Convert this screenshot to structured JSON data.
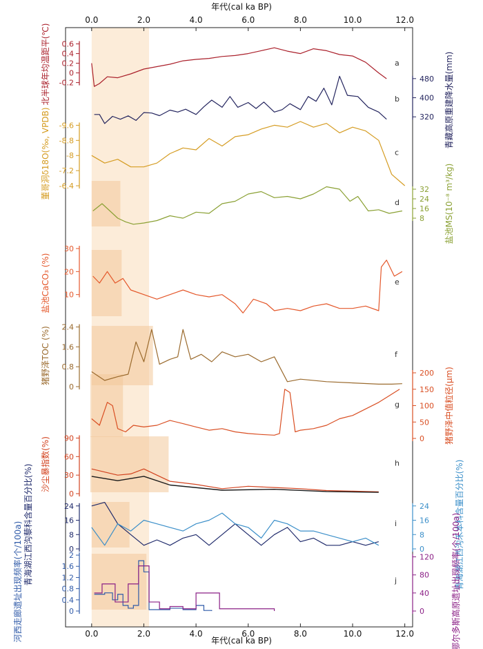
{
  "chart_data": {
    "type": "line",
    "title": "",
    "x_axis": {
      "label": "年代(cal ka BP)",
      "ticks": [
        "0.0",
        "2.0",
        "4.0",
        "6.0",
        "8.0",
        "10.0",
        "12.0"
      ],
      "tick_values": [
        0,
        2,
        4,
        6,
        8,
        10,
        12
      ],
      "range": [
        -1,
        12.3
      ]
    },
    "shading": {
      "main_band": [
        0,
        2.2
      ],
      "boxes": {
        "d": [
          0,
          1.1
        ],
        "e": [
          0,
          1.15
        ],
        "f": [
          0,
          2.35
        ],
        "g": [
          -0.05,
          1.2
        ],
        "h": [
          -0.05,
          2.95
        ],
        "i": [
          0,
          1.45
        ],
        "j": [
          0,
          2.1
        ]
      }
    },
    "panels": [
      {
        "letter": "a",
        "name": "北半球年均温距平(℃)",
        "side": "left",
        "color": "#aa1f2a",
        "ticks": [
          "0.6",
          "0.4",
          "0.2",
          "0",
          "-0.2"
        ],
        "tick_values": [
          0.6,
          0.4,
          0.2,
          0,
          -0.2
        ],
        "ylim": [
          -0.32,
          0.68
        ],
        "x": [
          0,
          0.1,
          0.3,
          0.6,
          1.0,
          1.5,
          2.0,
          2.5,
          3.0,
          3.5,
          4.0,
          4.5,
          5.0,
          5.5,
          6.0,
          6.5,
          7.0,
          7.5,
          8.0,
          8.5,
          9.0,
          9.5,
          10.0,
          10.5,
          11.0,
          11.3
        ],
        "y": [
          0.2,
          -0.28,
          -0.22,
          -0.08,
          -0.1,
          -0.02,
          0.08,
          0.13,
          0.18,
          0.25,
          0.28,
          0.3,
          0.34,
          0.36,
          0.4,
          0.46,
          0.52,
          0.45,
          0.4,
          0.5,
          0.46,
          0.38,
          0.35,
          0.22,
          0.0,
          -0.12
        ]
      },
      {
        "letter": "b",
        "name": "青藏高原重建降水量(mm)",
        "side": "right",
        "color": "#23245e",
        "ticks": [
          "480",
          "400",
          "320"
        ],
        "tick_values": [
          480,
          400,
          320
        ],
        "ylim": [
          260,
          520
        ],
        "x": [
          0.1,
          0.3,
          0.5,
          0.8,
          1.1,
          1.4,
          1.7,
          2.0,
          2.3,
          2.6,
          3.0,
          3.3,
          3.6,
          4.0,
          4.3,
          4.6,
          5.0,
          5.3,
          5.6,
          6.0,
          6.3,
          6.6,
          7.0,
          7.3,
          7.6,
          8.0,
          8.3,
          8.6,
          8.9,
          9.2,
          9.5,
          9.8,
          10.2,
          10.6,
          11.0,
          11.3
        ],
        "y": [
          330,
          330,
          292,
          322,
          310,
          324,
          305,
          338,
          336,
          325,
          348,
          340,
          352,
          330,
          362,
          390,
          360,
          405,
          360,
          380,
          355,
          382,
          340,
          350,
          375,
          350,
          405,
          385,
          440,
          370,
          490,
          410,
          405,
          360,
          340,
          310
        ]
      },
      {
        "letter": "c",
        "name": "董哥洞δ18O(‰, VPDB)",
        "side": "left",
        "color": "#d59c22",
        "ticks": [
          "-9.6",
          "-8.8",
          "-8",
          "-7.2",
          "-6.4"
        ],
        "tick_values": [
          -9.6,
          -8.8,
          -8,
          -7.2,
          -6.4
        ],
        "ylim": [
          -6.0,
          -10.2
        ],
        "inverted": true,
        "x": [
          0,
          0.5,
          1.0,
          1.5,
          2.0,
          2.5,
          3.0,
          3.5,
          4.0,
          4.5,
          5.0,
          5.5,
          6.0,
          6.5,
          7.0,
          7.5,
          8.0,
          8.5,
          9.0,
          9.5,
          10.0,
          10.5,
          11.0,
          11.5,
          12.0
        ],
        "y": [
          -8.0,
          -7.6,
          -7.8,
          -7.4,
          -7.4,
          -7.6,
          -8.1,
          -8.4,
          -8.3,
          -8.9,
          -8.5,
          -9.0,
          -9.1,
          -9.4,
          -9.6,
          -9.5,
          -9.8,
          -9.5,
          -9.7,
          -9.2,
          -9.5,
          -9.3,
          -8.8,
          -7.0,
          -6.4
        ]
      },
      {
        "letter": "d",
        "name": "盐池MS(10⁻⁸ m³/kg)",
        "side": "right",
        "color": "#8aa033",
        "ticks": [
          "32",
          "24",
          "16",
          "8"
        ],
        "tick_values": [
          32,
          24,
          16,
          8
        ],
        "ylim": [
          0,
          40
        ],
        "x": [
          0.05,
          0.4,
          0.7,
          1.0,
          1.3,
          1.6,
          2.0,
          2.5,
          3.0,
          3.5,
          4.0,
          4.5,
          5.0,
          5.5,
          6.0,
          6.5,
          7.0,
          7.5,
          8.0,
          8.5,
          9.0,
          9.5,
          9.9,
          10.2,
          10.6,
          11.0,
          11.4,
          11.9
        ],
        "y": [
          14,
          20,
          14,
          8,
          5,
          3,
          4,
          6,
          10,
          8,
          13,
          12,
          20,
          22,
          28,
          30,
          25,
          26,
          24,
          28,
          34,
          32,
          22,
          26,
          14,
          15,
          12,
          14
        ]
      },
      {
        "letter": "e",
        "name": "盐池CaCO₃ (%)",
        "side": "left",
        "color": "#e4572a",
        "ticks": [
          "10",
          "20",
          "30"
        ],
        "tick_values": [
          10,
          20,
          30
        ],
        "ylim": [
          0,
          30
        ],
        "inverted": true,
        "x": [
          0.05,
          0.3,
          0.6,
          0.9,
          1.2,
          1.5,
          2.0,
          2.5,
          3.0,
          3.5,
          4.0,
          4.5,
          5.0,
          5.5,
          5.8,
          6.2,
          6.7,
          7.0,
          7.5,
          8.0,
          8.5,
          9.0,
          9.5,
          10.0,
          10.5,
          11.0,
          11.1,
          11.3,
          11.6,
          11.9
        ],
        "y": [
          18,
          15,
          20,
          15,
          17,
          12,
          10,
          8,
          10,
          12,
          10,
          9,
          10,
          6,
          2,
          8,
          6,
          3,
          4,
          3,
          5,
          6,
          4,
          4,
          5,
          3,
          22,
          25,
          18,
          20
        ]
      },
      {
        "letter": "f",
        "name": "猪野泽TOC (%)",
        "side": "left",
        "color": "#9a6a2d",
        "ticks": [
          "2.4",
          "1.6",
          "0.8",
          "0"
        ],
        "tick_values": [
          2.4,
          1.6,
          0.8,
          0
        ],
        "ylim": [
          0,
          2.5
        ],
        "x": [
          0,
          0.5,
          1.0,
          1.4,
          1.7,
          2.0,
          2.3,
          2.6,
          3.0,
          3.3,
          3.5,
          3.8,
          4.2,
          4.6,
          5.0,
          5.5,
          6.0,
          6.5,
          7.0,
          7.5,
          8.0,
          9.0,
          10.0,
          11.0,
          11.5,
          11.9
        ],
        "y": [
          0.6,
          0.25,
          0.4,
          0.5,
          1.8,
          1.0,
          2.3,
          0.9,
          1.1,
          1.2,
          2.3,
          1.1,
          1.3,
          1.0,
          1.4,
          1.2,
          1.3,
          1.0,
          1.2,
          0.2,
          0.3,
          0.2,
          0.15,
          0.1,
          0.1,
          0.12
        ]
      },
      {
        "letter": "g",
        "name": "猪野泽中值粒径(μm)",
        "side": "right",
        "color": "#d94e22",
        "ticks": [
          "200",
          "150",
          "100",
          "50",
          "0"
        ],
        "tick_values": [
          200,
          150,
          100,
          50,
          0
        ],
        "ylim": [
          0,
          200
        ],
        "x": [
          0,
          0.3,
          0.6,
          0.8,
          1.0,
          1.3,
          1.6,
          2.0,
          2.5,
          3.0,
          3.5,
          4.0,
          4.5,
          5.0,
          5.5,
          6.0,
          6.5,
          7.0,
          7.2,
          7.4,
          7.6,
          7.8,
          8.0,
          8.5,
          9.0,
          9.5,
          10.0,
          10.5,
          11.0,
          11.4,
          11.8
        ],
        "y": [
          60,
          40,
          110,
          100,
          30,
          20,
          40,
          35,
          40,
          55,
          45,
          35,
          25,
          30,
          20,
          15,
          12,
          10,
          15,
          150,
          140,
          20,
          25,
          30,
          40,
          60,
          70,
          90,
          110,
          130,
          150
        ]
      },
      {
        "letter": "h",
        "name": "沙尘暴指数(%)",
        "side": "left",
        "color": "#d2411d",
        "trend_color": "#1a1a1a",
        "ticks": [
          "90",
          "60",
          "30",
          "0"
        ],
        "tick_values": [
          90,
          60,
          30,
          0
        ],
        "ylim": [
          0,
          95
        ],
        "x": [
          0,
          0.5,
          1.0,
          1.5,
          2.0,
          2.5,
          3.0,
          4.0,
          5.0,
          6.0,
          7.0,
          8.0,
          9.0,
          10.0,
          11.0
        ],
        "y": [
          40,
          35,
          30,
          32,
          40,
          30,
          20,
          15,
          8,
          12,
          10,
          8,
          5,
          4,
          3
        ]
      },
      {
        "letter": "i",
        "series": [
          {
            "name": "青海湖江西沟藜科含量百分比(%)",
            "side": "left",
            "color": "#1f2a6b",
            "ticks": [
              "24",
              "16",
              "8",
              "0"
            ],
            "tick_values": [
              24,
              16,
              8,
              0
            ],
            "x": [
              0.0,
              0.5,
              1.0,
              1.5,
              2.0,
              2.5,
              3.0,
              3.5,
              4.0,
              4.5,
              5.0,
              5.5,
              6.0,
              6.5,
              7.0,
              7.5,
              8.0,
              8.5,
              9.0,
              9.5,
              10.0,
              10.5,
              11.0
            ],
            "y": [
              24,
              26,
              14,
              8,
              2,
              5,
              2,
              6,
              8,
              2,
              8,
              14,
              8,
              2,
              8,
              12,
              4,
              6,
              2,
              2,
              4,
              2,
              4
            ]
          },
          {
            "name": "青海湖江西沟禾本科含量百分比(%)",
            "side": "right",
            "color": "#3b8fc9",
            "ticks": [
              "24",
              "16",
              "8",
              "0"
            ],
            "tick_values": [
              24,
              16,
              8,
              0
            ],
            "x": [
              0.0,
              0.5,
              1.0,
              1.5,
              2.0,
              2.5,
              3.0,
              3.5,
              4.0,
              4.5,
              5.0,
              5.5,
              6.0,
              6.5,
              7.0,
              7.5,
              8.0,
              8.5,
              9.0,
              9.5,
              10.0,
              10.5,
              11.0
            ],
            "y": [
              12,
              2,
              14,
              10,
              16,
              14,
              12,
              10,
              14,
              16,
              20,
              14,
              12,
              6,
              16,
              14,
              10,
              10,
              8,
              6,
              4,
              6,
              2
            ]
          }
        ],
        "ylim": [
          0,
          27
        ]
      },
      {
        "letter": "j",
        "series": [
          {
            "name": "河西走廊遗址出现频率(个/100a)",
            "side": "left",
            "color": "#2f5aa8",
            "ticks": [
              "2",
              "1.6",
              "1.2",
              "0.8",
              "0.4",
              "0"
            ],
            "tick_values": [
              2,
              1.6,
              1.2,
              0.8,
              0.4,
              0
            ],
            "steps_x": [
              0.1,
              0.5,
              0.8,
              1.0,
              1.2,
              1.4,
              1.6,
              1.8,
              2.0,
              2.2,
              2.5,
              3.0,
              3.5,
              4.0,
              4.3,
              4.6
            ],
            "steps_y": [
              0.6,
              0.65,
              0.4,
              0.6,
              0.2,
              0.1,
              0.2,
              1.8,
              1.4,
              0.05,
              0.05,
              0.1,
              0.05,
              0.2,
              0.02,
              0
            ]
          },
          {
            "name": "鄂尔多斯高原遗址出现频率(个/100a)",
            "side": "right",
            "color": "#8a1f85",
            "ticks": [
              "120",
              "80",
              "40",
              "0"
            ],
            "tick_values": [
              120,
              80,
              40,
              0
            ],
            "steps_x": [
              0.1,
              0.4,
              0.9,
              1.4,
              1.8,
              2.2,
              2.6,
              3.0,
              3.5,
              4.0,
              4.3,
              4.9,
              7.0
            ],
            "steps_y": [
              40,
              60,
              20,
              60,
              100,
              20,
              5,
              10,
              5,
              40,
              40,
              5,
              0
            ]
          }
        ],
        "ylim": [
          0,
          2.1
        ]
      }
    ]
  }
}
